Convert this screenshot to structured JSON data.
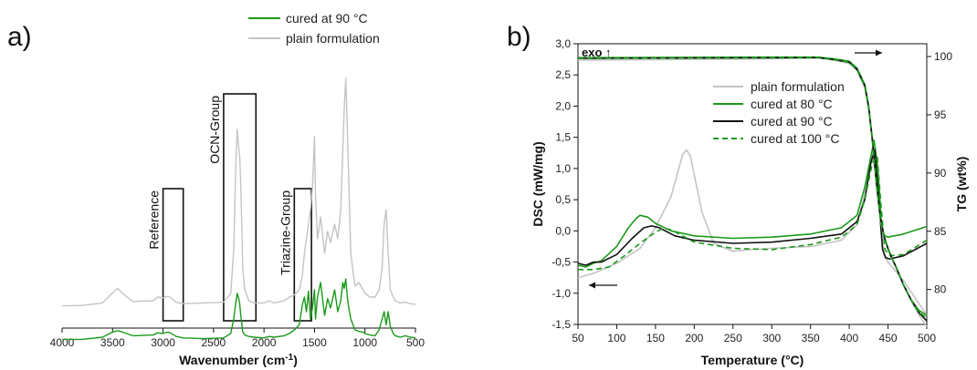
{
  "colors": {
    "green": "#1a9a1a",
    "grey": "#c4c4c4",
    "black": "#111111"
  },
  "chart_data": [
    {
      "panel": "a)",
      "type": "line",
      "xlabel": "Wavenumber (cm-1)",
      "xlabel_main": "Wavenumber (cm",
      "xlabel_sup": "-1",
      "xlabel_end": ")",
      "xlim": [
        4000,
        500
      ],
      "x_ticks": [
        4000,
        3500,
        3000,
        2500,
        2000,
        1500,
        1000,
        500
      ],
      "y_axis_shown": false,
      "legend": [
        "cured at 90 °C",
        "plain formulation"
      ],
      "boxes": [
        {
          "label": "Reference",
          "x_range": [
            3000,
            2800
          ]
        },
        {
          "label": "OCN-Group",
          "x_range": [
            2400,
            2080
          ]
        },
        {
          "label": "Triazine-Group",
          "x_range": [
            1700,
            1530
          ]
        }
      ],
      "series": [
        {
          "name": "plain formulation",
          "style": "solid",
          "color": "grey",
          "x": [
            4000,
            3800,
            3600,
            3500,
            3450,
            3400,
            3300,
            3100,
            3050,
            3000,
            2960,
            2930,
            2870,
            2800,
            2600,
            2400,
            2330,
            2300,
            2280,
            2265,
            2250,
            2240,
            2230,
            2210,
            2190,
            2150,
            2100,
            2000,
            1950,
            1900,
            1800,
            1750,
            1700,
            1650,
            1620,
            1600,
            1580,
            1560,
            1540,
            1520,
            1500,
            1490,
            1470,
            1440,
            1400,
            1370,
            1340,
            1300,
            1270,
            1240,
            1220,
            1205,
            1190,
            1175,
            1160,
            1140,
            1100,
            1060,
            1020,
            1000,
            950,
            900,
            860,
            830,
            810,
            790,
            770,
            750,
            720,
            700,
            650,
            600,
            550,
            500
          ],
          "y": [
            0.8,
            0.85,
            1.2,
            2.6,
            3.2,
            2.5,
            1.4,
            1.5,
            2.0,
            1.9,
            2.1,
            2.0,
            1.3,
            1.1,
            1.2,
            1.3,
            2.5,
            8.5,
            20.0,
            25.0,
            22.5,
            21.0,
            17.5,
            6.0,
            3.0,
            1.5,
            1.2,
            1.2,
            1.5,
            1.2,
            1.5,
            2.0,
            2.3,
            3.0,
            5.0,
            8.0,
            10.0,
            12.0,
            14.0,
            17.0,
            24.0,
            16.0,
            10.0,
            13.0,
            8.0,
            11.0,
            9.5,
            12.0,
            10.0,
            14.0,
            22.0,
            28.0,
            32.0,
            25.0,
            18.0,
            8.0,
            3.5,
            4.0,
            3.0,
            2.5,
            2.0,
            2.0,
            3.0,
            6.0,
            12.0,
            14.0,
            8.0,
            3.0,
            2.0,
            1.5,
            1.2,
            1.3,
            1.1,
            1.0
          ]
        },
        {
          "name": "cured at 90 °C",
          "style": "solid",
          "color": "green",
          "x": [
            4000,
            3800,
            3600,
            3500,
            3450,
            3400,
            3300,
            3100,
            3050,
            3000,
            2960,
            2930,
            2870,
            2800,
            2600,
            2400,
            2330,
            2300,
            2280,
            2265,
            2250,
            2240,
            2230,
            2210,
            2190,
            2150,
            2100,
            2000,
            1950,
            1900,
            1800,
            1750,
            1700,
            1650,
            1620,
            1600,
            1580,
            1560,
            1540,
            1520,
            1500,
            1490,
            1470,
            1440,
            1400,
            1370,
            1340,
            1300,
            1270,
            1240,
            1220,
            1205,
            1190,
            1175,
            1160,
            1140,
            1100,
            1060,
            1020,
            1000,
            950,
            900,
            860,
            830,
            810,
            790,
            770,
            750,
            720,
            700,
            650,
            600,
            550,
            500
          ],
          "y": [
            -3.8,
            -3.8,
            -3.5,
            -2.8,
            -2.6,
            -2.8,
            -3.3,
            -3.2,
            -2.9,
            -3.0,
            -2.8,
            -2.9,
            -3.4,
            -3.6,
            -3.7,
            -3.6,
            -3.0,
            -1.0,
            1.2,
            2.5,
            1.8,
            1.0,
            -0.5,
            -2.8,
            -3.2,
            -3.4,
            -3.5,
            -3.6,
            -3.4,
            -3.5,
            -3.3,
            -3.0,
            -2.5,
            -1.8,
            1.0,
            2.0,
            0.0,
            2.8,
            -1.0,
            0.5,
            3.0,
            -1.0,
            2.0,
            4.0,
            -0.5,
            1.8,
            0.5,
            3.0,
            0.0,
            1.5,
            4.0,
            3.2,
            4.5,
            2.0,
            0.5,
            -1.0,
            -2.5,
            -2.7,
            -2.8,
            -3.0,
            -3.2,
            -3.3,
            -2.5,
            -1.0,
            0.0,
            -1.8,
            0.0,
            -2.0,
            -3.0,
            -3.3,
            -3.5,
            -3.3,
            -3.5,
            -3.6
          ]
        }
      ]
    },
    {
      "panel": "b)",
      "type": "line",
      "xlabel": "Temperature (°C)",
      "ylabel": "DSC (mW/mg)",
      "y2label": "TG (wt%)",
      "xlim": [
        50,
        500
      ],
      "ylim": [
        -1.5,
        3.0
      ],
      "y2lim": [
        77,
        101.1
      ],
      "x_ticks": [
        50,
        100,
        150,
        200,
        250,
        300,
        350,
        400,
        450,
        500
      ],
      "y_ticks": [
        "-1,5",
        "-1,0",
        "-0,5",
        "0,0",
        "0,5",
        "1,0",
        "1,5",
        "2,0",
        "2,5",
        "3,0"
      ],
      "y2_ticks": [
        80,
        85,
        90,
        95,
        100
      ],
      "annotation": "exo ↑",
      "legend": [
        "plain formulation",
        "cured at 80 °C",
        "cured at 90 °C",
        "cured at 100 °C"
      ],
      "series": [
        {
          "name": "plain formulation",
          "kind": "DSC",
          "style": "solid",
          "color": "grey",
          "x": [
            50,
            70,
            100,
            130,
            150,
            170,
            180,
            185,
            190,
            195,
            200,
            210,
            225,
            250,
            270,
            300,
            350,
            390,
            410,
            420,
            430,
            440,
            445,
            450,
            470,
            500
          ],
          "y": [
            -0.75,
            -0.68,
            -0.52,
            -0.28,
            0.05,
            0.55,
            1.0,
            1.22,
            1.3,
            1.2,
            0.9,
            0.3,
            -0.2,
            -0.33,
            -0.3,
            -0.28,
            -0.25,
            -0.15,
            0.1,
            0.6,
            1.3,
            0.2,
            -0.4,
            -0.5,
            -0.8,
            -1.35
          ]
        },
        {
          "name": "cured at 80 °C",
          "kind": "DSC",
          "style": "solid",
          "color": "green",
          "x": [
            50,
            60,
            70,
            80,
            100,
            115,
            125,
            130,
            140,
            150,
            170,
            200,
            250,
            300,
            350,
            390,
            410,
            420,
            428,
            432,
            437,
            442,
            446,
            450,
            470,
            500
          ],
          "y": [
            -0.55,
            -0.58,
            -0.52,
            -0.48,
            -0.25,
            0.05,
            0.2,
            0.25,
            0.22,
            0.12,
            0.0,
            -0.08,
            -0.12,
            -0.1,
            -0.05,
            0.05,
            0.25,
            0.7,
            1.2,
            1.45,
            1.0,
            0.0,
            -0.08,
            -0.1,
            -0.05,
            0.07
          ]
        },
        {
          "name": "cured at 90 °C",
          "kind": "DSC",
          "style": "solid",
          "color": "black",
          "x": [
            50,
            60,
            70,
            80,
            100,
            120,
            135,
            145,
            155,
            175,
            200,
            250,
            300,
            350,
            390,
            410,
            420,
            428,
            433,
            438,
            443,
            447,
            452,
            470,
            500
          ],
          "y": [
            -0.52,
            -0.55,
            -0.5,
            -0.5,
            -0.38,
            -0.12,
            0.05,
            0.08,
            0.05,
            -0.08,
            -0.15,
            -0.2,
            -0.18,
            -0.12,
            -0.05,
            0.15,
            0.5,
            1.1,
            1.3,
            0.5,
            -0.3,
            -0.43,
            -0.45,
            -0.4,
            -0.2
          ]
        },
        {
          "name": "cured at 100 °C",
          "kind": "DSC",
          "style": "dashed",
          "color": "green",
          "x": [
            50,
            70,
            90,
            110,
            130,
            150,
            160,
            170,
            200,
            250,
            300,
            350,
            390,
            410,
            420,
            430,
            436,
            441,
            446,
            452,
            470,
            500
          ],
          "y": [
            -0.62,
            -0.62,
            -0.58,
            -0.4,
            -0.2,
            -0.02,
            0.04,
            0.02,
            -0.18,
            -0.28,
            -0.3,
            -0.22,
            -0.1,
            0.1,
            0.5,
            1.1,
            1.2,
            0.4,
            -0.3,
            -0.4,
            -0.38,
            -0.15
          ]
        },
        {
          "name": "plain formulation",
          "kind": "TG",
          "style": "solid",
          "color": "grey",
          "x": [
            50,
            300,
            360,
            380,
            400,
            410,
            420,
            425,
            430,
            435,
            440,
            445,
            450,
            455,
            460,
            470,
            480,
            490,
            500
          ],
          "y": [
            99.7,
            99.8,
            99.9,
            99.7,
            99.4,
            98.8,
            97.3,
            95.5,
            92.5,
            89.0,
            86.0,
            84.4,
            83.4,
            82.6,
            81.9,
            80.3,
            79.0,
            77.8,
            76.8
          ]
        },
        {
          "name": "cured at 80 °C",
          "kind": "TG",
          "style": "solid",
          "color": "green",
          "x": [
            50,
            300,
            360,
            380,
            400,
            410,
            420,
            425,
            430,
            435,
            440,
            445,
            450,
            455,
            460,
            470,
            480,
            490,
            500
          ],
          "y": [
            99.9,
            99.95,
            99.95,
            99.8,
            99.6,
            99.0,
            97.6,
            95.8,
            92.8,
            89.3,
            86.3,
            84.6,
            83.5,
            82.7,
            82.0,
            80.4,
            79.1,
            78.2,
            77.8
          ]
        },
        {
          "name": "cured at 90 °C",
          "kind": "TG",
          "style": "solid",
          "color": "black",
          "x": [
            50,
            300,
            360,
            380,
            400,
            410,
            420,
            425,
            430,
            435,
            440,
            445,
            450,
            455,
            460,
            470,
            480,
            490,
            500
          ],
          "y": [
            99.85,
            99.9,
            99.9,
            99.75,
            99.5,
            98.9,
            97.5,
            95.7,
            92.7,
            89.2,
            86.2,
            84.5,
            83.5,
            82.7,
            82.0,
            80.4,
            79.1,
            78.0,
            77.3
          ]
        },
        {
          "name": "cured at 100 °C",
          "kind": "TG",
          "style": "dashed",
          "color": "green",
          "x": [
            50,
            300,
            360,
            380,
            400,
            410,
            420,
            425,
            430,
            435,
            440,
            445,
            450,
            455,
            460,
            470,
            480,
            490,
            500
          ],
          "y": [
            99.85,
            99.9,
            99.9,
            99.75,
            99.5,
            98.9,
            97.5,
            95.7,
            92.7,
            89.2,
            86.2,
            84.5,
            83.5,
            82.7,
            82.0,
            80.4,
            79.1,
            78.0,
            77.6
          ]
        }
      ]
    }
  ]
}
